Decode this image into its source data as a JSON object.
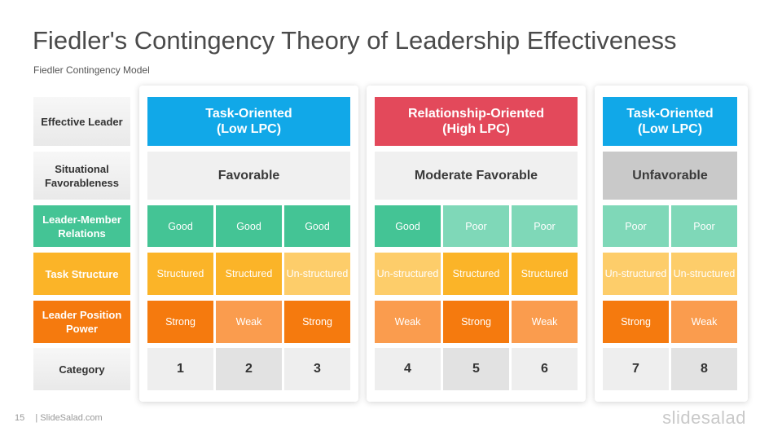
{
  "title": "Fiedler's Contingency Theory of Leadership Effectiveness",
  "subtitle": "Fiedler Contingency  Model",
  "row_labels": {
    "leader": "Effective Leader",
    "situational": "Situational Favorableness",
    "relations": "Leader-Member Relations",
    "task": "Task Structure",
    "power": "Leader Position Power",
    "category": "Category"
  },
  "groups": [
    {
      "header": [
        "Task-Oriented",
        "(Low LPC)"
      ],
      "header_color": "#11a8e8",
      "favorableness": "Favorable",
      "fav_color": "#f0f0f0",
      "relations": [
        "Good",
        "Good",
        "Good"
      ],
      "task": [
        "Structured",
        "Structured",
        "Un-structured"
      ],
      "power": [
        "Strong",
        "Weak",
        "Strong"
      ],
      "categories": [
        "1",
        "2",
        "3"
      ]
    },
    {
      "header": [
        "Relationship-Oriented",
        "(High LPC)"
      ],
      "header_color": "#e3495b",
      "favorableness": "Moderate Favorable",
      "fav_color": "#f0f0f0",
      "relations": [
        "Good",
        "Poor",
        "Poor"
      ],
      "task": [
        "Un-structured",
        "Structured",
        "Structured"
      ],
      "power": [
        "Weak",
        "Strong",
        "Weak"
      ],
      "categories": [
        "4",
        "5",
        "6"
      ]
    },
    {
      "header": [
        "Task-Oriented",
        "(Low LPC)"
      ],
      "header_color": "#11a8e8",
      "favorableness": "Unfavorable",
      "fav_color": "#c9c9c9",
      "relations": [
        "Poor",
        "Poor"
      ],
      "task": [
        "Un-structured",
        "Un-structured"
      ],
      "power": [
        "Strong",
        "Weak"
      ],
      "categories": [
        "7",
        "8"
      ]
    }
  ],
  "colors": {
    "good": "#44c495",
    "poor": "#7fd8b8",
    "structured": "#fbb428",
    "unstructured": "#fdcd6a",
    "strong": "#f57a0e",
    "weak": "#fa9c4e",
    "cat_light": "#eeeeee",
    "cat_dark": "#e2e2e2"
  },
  "footer": {
    "page_number": "15",
    "site": "| SlideSalad.com"
  },
  "logo": "slidesalad"
}
